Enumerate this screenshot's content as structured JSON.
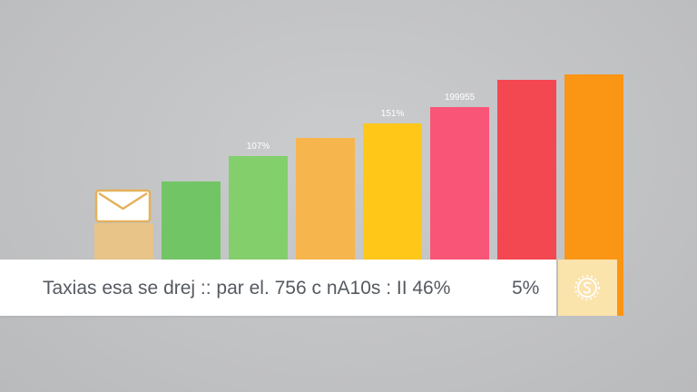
{
  "chart_data": {
    "type": "bar",
    "ylim": [
      0,
      200
    ],
    "bars": [
      {
        "value": 20,
        "color": "#e8c489",
        "label": "",
        "icon": "envelope-icon"
      },
      {
        "value": 43,
        "color": "#72c565",
        "label": ""
      },
      {
        "value": 57,
        "color": "#82cf6c",
        "label": "107%"
      },
      {
        "value": 67,
        "color": "#f7b54d",
        "label": ""
      },
      {
        "value": 75,
        "color": "#ffc819",
        "label": "151%"
      },
      {
        "value": 84,
        "color": "#f95577",
        "label": "199955"
      },
      {
        "value": 99,
        "color": "#f34752",
        "label": ""
      },
      {
        "value": 102,
        "color": "#fb9514",
        "label": ""
      }
    ]
  },
  "caption": {
    "text": "Taxias esa se drej :: par el. 756 c nA10s : II 46%",
    "percent": "5%",
    "coin_icon": "dollar-coin-icon"
  }
}
